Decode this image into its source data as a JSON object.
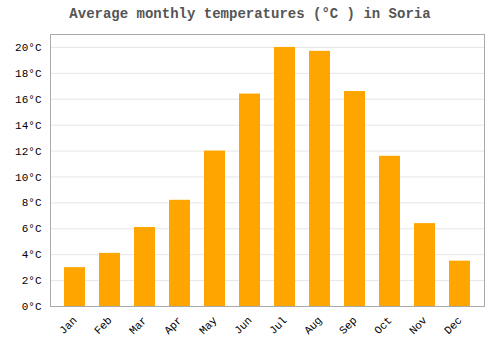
{
  "chart_data": {
    "type": "bar",
    "title": "Average monthly temperatures (°C ) in Soria",
    "categories": [
      "Jan",
      "Feb",
      "Mar",
      "Apr",
      "May",
      "Jun",
      "Jul",
      "Aug",
      "Sep",
      "Oct",
      "Nov",
      "Dec"
    ],
    "values": [
      3.0,
      4.1,
      6.1,
      8.2,
      12.0,
      16.4,
      20.0,
      19.7,
      16.6,
      11.6,
      6.4,
      3.5
    ],
    "color": "#FFA500",
    "ylim": [
      0,
      21
    ],
    "yticks": [
      {
        "value": 0,
        "label": "0°C"
      },
      {
        "value": 2,
        "label": "2°C"
      },
      {
        "value": 4,
        "label": "4°C"
      },
      {
        "value": 6,
        "label": "6°C"
      },
      {
        "value": 8,
        "label": "8°C"
      },
      {
        "value": 10,
        "label": "10°C"
      },
      {
        "value": 12,
        "label": "12°C"
      },
      {
        "value": 14,
        "label": "14°C"
      },
      {
        "value": 16,
        "label": "16°C"
      },
      {
        "value": 18,
        "label": "18°C"
      },
      {
        "value": 20,
        "label": "20°C"
      }
    ],
    "grid": true
  }
}
